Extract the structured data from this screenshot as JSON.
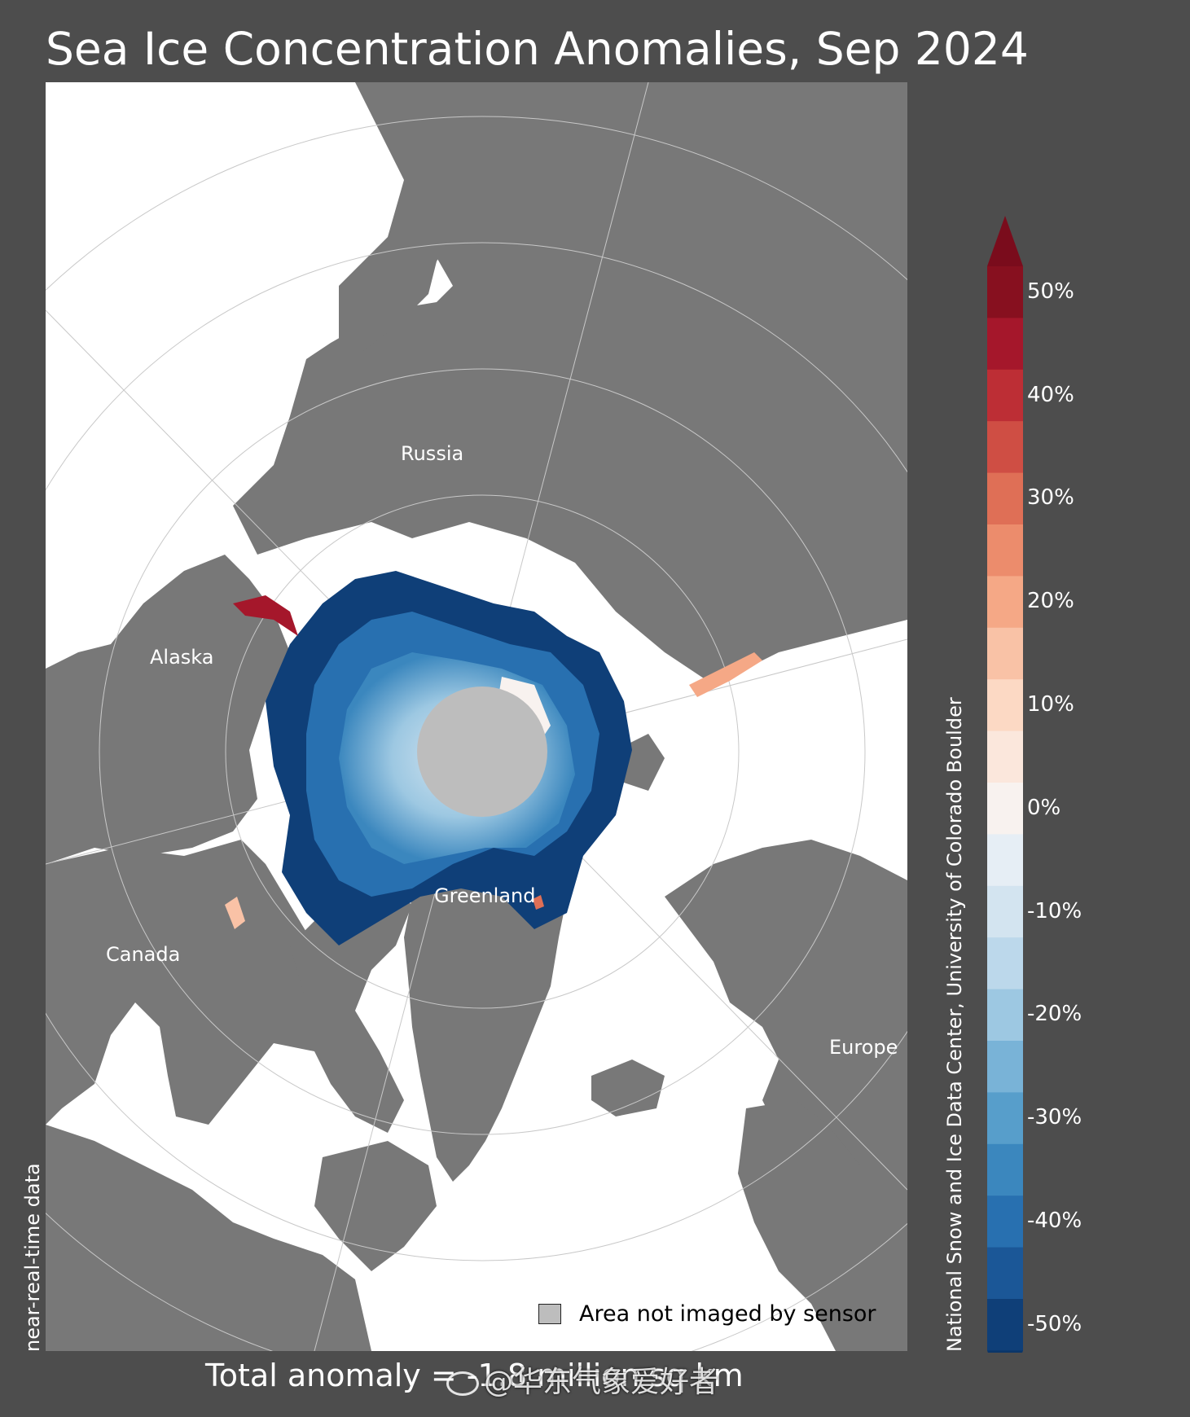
{
  "title": "Sea Ice Concentration Anomalies, Sep 2024",
  "regions": {
    "russia": "Russia",
    "alaska": "Alaska",
    "canada": "Canada",
    "greenland": "Greenland",
    "europe": "Europe"
  },
  "legend": {
    "not_imaged_label": "Area not imaged by sensor",
    "not_imaged_color": "#bdbdbd"
  },
  "credit": "National Snow and Ice Data Center, University of Colorado Boulder",
  "data_status": "near-real-time data",
  "total_anomaly": "Total anomaly = -1.8 million sq km",
  "watermark": "@华东气象爱好者",
  "colorbar": {
    "min": -50,
    "max": 50,
    "step": 5,
    "tick_labels": [
      "50%",
      "40%",
      "30%",
      "20%",
      "10%",
      "0%",
      "-10%",
      "-20%",
      "-30%",
      "-40%",
      "-50%"
    ],
    "colors_top_to_bottom": [
      "#87101f",
      "#a5172b",
      "#bd2e35",
      "#cf4e44",
      "#df6f56",
      "#ec8c6c",
      "#f5a886",
      "#f9c2a6",
      "#fcd9c4",
      "#fbe7dc",
      "#f8f2ef",
      "#e6eef5",
      "#d3e4f0",
      "#bcd8eb",
      "#9dc8e2",
      "#79b3d7",
      "#579ecb",
      "#3b87be",
      "#2870b0",
      "#1b5797",
      "#0f3f78"
    ],
    "extend_colors": {
      "max": "#7a0c1c",
      "min": "#0b3669"
    }
  },
  "colors": {
    "background": "#4d4d4d",
    "land": "#787878",
    "ocean_no_anomaly": "#ffffff",
    "pole_hole": "#bdbdbd"
  }
}
